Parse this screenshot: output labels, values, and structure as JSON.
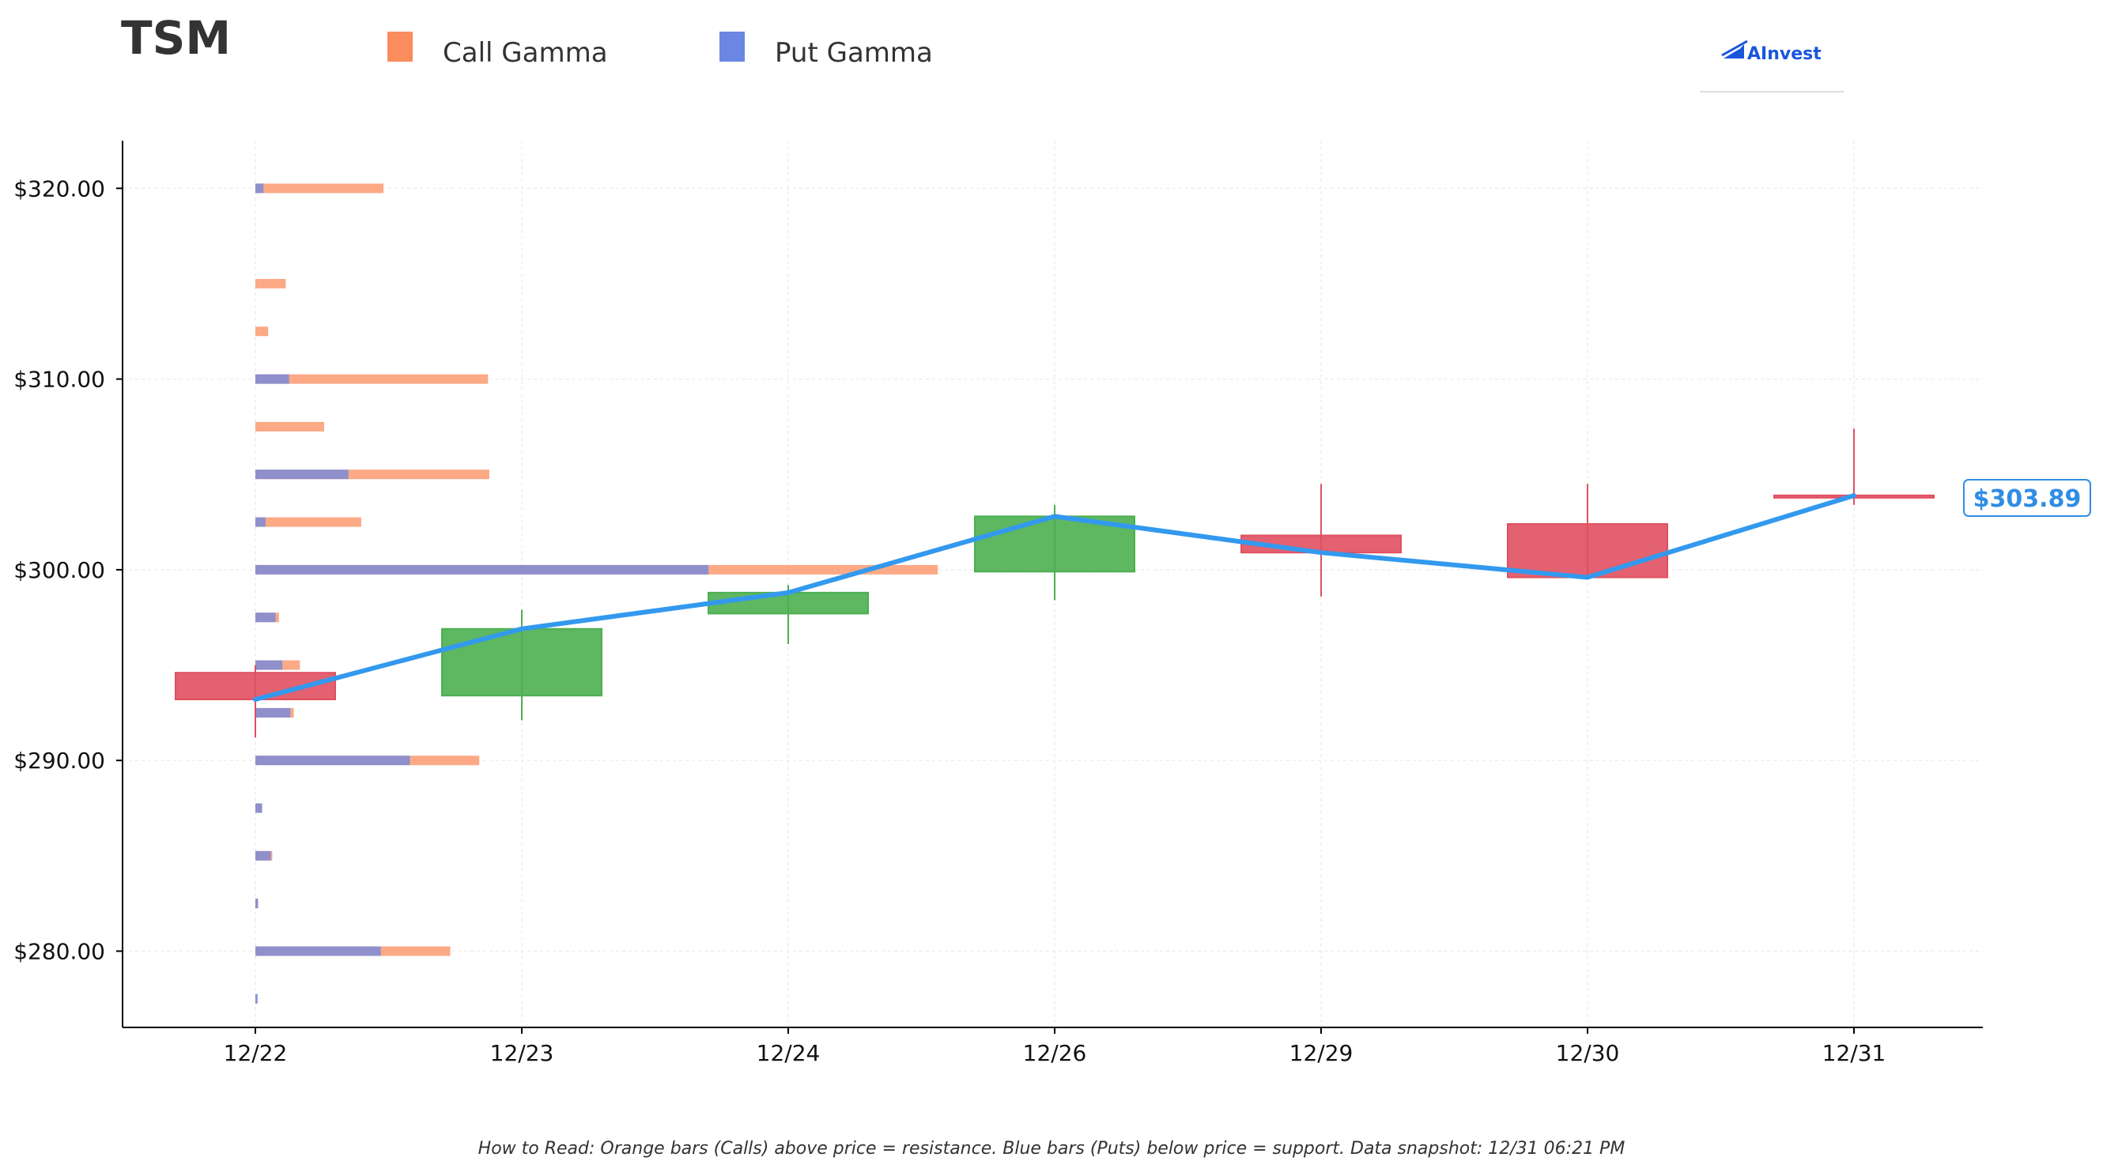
{
  "header": {
    "ticker": "TSM",
    "logo_text": "AInvest"
  },
  "legend": [
    {
      "label": "Call Gamma",
      "color": "#fb8c5d"
    },
    {
      "label": "Put Gamma",
      "color": "#6b87e3"
    }
  ],
  "footer_text": "How to Read: Orange bars (Calls) above price = resistance. Blue bars (Puts) below price = support. Data snapshot: 12/31 06:21 PM",
  "price_tag": "$303.89",
  "colors": {
    "up": "#4caf50",
    "down": "#e05060",
    "line": "#3399ee",
    "call": "#fb8c5d",
    "put": "#6b87e3"
  },
  "chart_data": {
    "type": "candlestick",
    "categories": [
      "12/22",
      "12/23",
      "12/24",
      "12/26",
      "12/29",
      "12/30",
      "12/31"
    ],
    "ylim": [
      276,
      322.5
    ],
    "yticks": [
      280,
      290,
      300,
      310,
      320
    ],
    "ytick_labels": [
      "$280.00",
      "$290.00",
      "$300.00",
      "$310.00",
      "$320.00"
    ],
    "candles": [
      {
        "date": "12/22",
        "open": 294.6,
        "high": 295.0,
        "low": 291.2,
        "close": 293.2
      },
      {
        "date": "12/23",
        "open": 293.4,
        "high": 297.9,
        "low": 292.1,
        "close": 296.9
      },
      {
        "date": "12/24",
        "open": 297.7,
        "high": 299.2,
        "low": 296.1,
        "close": 298.8
      },
      {
        "date": "12/26",
        "open": 299.9,
        "high": 303.4,
        "low": 298.4,
        "close": 302.8
      },
      {
        "date": "12/29",
        "open": 301.8,
        "high": 304.5,
        "low": 298.6,
        "close": 300.9
      },
      {
        "date": "12/30",
        "open": 302.4,
        "high": 304.5,
        "low": 299.6,
        "close": 299.6
      },
      {
        "date": "12/31",
        "open": 303.9,
        "high": 307.4,
        "low": 303.4,
        "close": 303.89
      }
    ],
    "close_line": [
      293.2,
      296.9,
      298.8,
      302.8,
      300.9,
      299.6,
      303.89
    ],
    "gamma_levels": [
      {
        "strike": 320.0,
        "call": 0.19,
        "put": 0.012
      },
      {
        "strike": 315.0,
        "call": 0.045,
        "put": 0.0
      },
      {
        "strike": 312.5,
        "call": 0.019,
        "put": 0.0
      },
      {
        "strike": 310.0,
        "call": 0.345,
        "put": 0.05
      },
      {
        "strike": 307.5,
        "call": 0.102,
        "put": 0.0
      },
      {
        "strike": 305.0,
        "call": 0.347,
        "put": 0.138
      },
      {
        "strike": 302.5,
        "call": 0.157,
        "put": 0.015
      },
      {
        "strike": 300.0,
        "call": 1.012,
        "put": 0.672
      },
      {
        "strike": 297.5,
        "call": 0.035,
        "put": 0.03
      },
      {
        "strike": 295.0,
        "call": 0.066,
        "put": 0.04
      },
      {
        "strike": 292.5,
        "call": 0.057,
        "put": 0.052
      },
      {
        "strike": 290.0,
        "call": 0.332,
        "put": 0.229
      },
      {
        "strike": 287.5,
        "call": 0.01,
        "put": 0.01
      },
      {
        "strike": 285.0,
        "call": 0.025,
        "put": 0.023
      },
      {
        "strike": 282.5,
        "call": 0.004,
        "put": 0.004
      },
      {
        "strike": 280.0,
        "call": 0.289,
        "put": 0.186
      },
      {
        "strike": 277.5,
        "call": 0.002,
        "put": 0.002
      }
    ],
    "grid": true
  }
}
